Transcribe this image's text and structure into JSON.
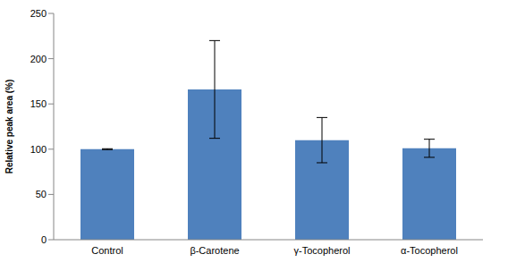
{
  "chart_data": {
    "type": "bar",
    "categories": [
      "Control",
      "β-Carotene",
      "γ-Tocopherol",
      "α-Tocopherol"
    ],
    "values": [
      100,
      166,
      110,
      101
    ],
    "errors": [
      0.5,
      54,
      25,
      10
    ],
    "color": "#4f81bd",
    "y_label": "Relative peak area (%)",
    "ylim": [
      0,
      250
    ],
    "yticks": [
      0,
      50,
      100,
      150,
      200,
      250
    ],
    "grid": false
  }
}
